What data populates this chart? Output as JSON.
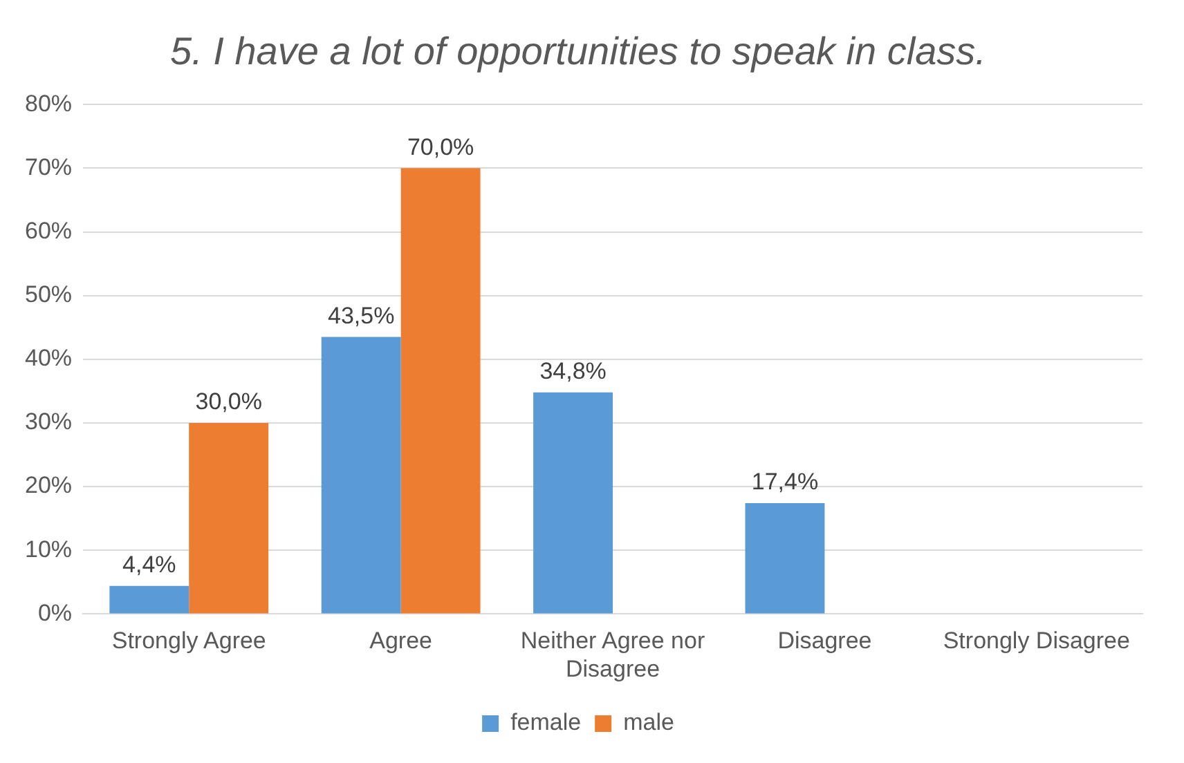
{
  "chart_data": {
    "type": "bar",
    "title": "5. I have a lot of opportunities to speak in class.",
    "categories": [
      "Strongly Agree",
      "Agree",
      "Neither Agree nor Disagree",
      "Disagree",
      "Strongly Disagree"
    ],
    "series": [
      {
        "name": "female",
        "color": "#5b9bd5",
        "values": [
          4.4,
          43.5,
          34.8,
          17.4,
          null
        ],
        "value_labels": [
          "4,4%",
          "43,5%",
          "34,8%",
          "17,4%",
          null
        ]
      },
      {
        "name": "male",
        "color": "#ed7d31",
        "values": [
          30.0,
          70.0,
          null,
          null,
          null
        ],
        "value_labels": [
          "30,0%",
          "70,0%",
          null,
          null,
          null
        ]
      }
    ],
    "ylim": [
      0,
      80
    ],
    "yticks": [
      {
        "value": 0,
        "label": "0%"
      },
      {
        "value": 10,
        "label": "10%"
      },
      {
        "value": 20,
        "label": "20%"
      },
      {
        "value": 30,
        "label": "30%"
      },
      {
        "value": 40,
        "label": "40%"
      },
      {
        "value": 50,
        "label": "50%"
      },
      {
        "value": 60,
        "label": "60%"
      },
      {
        "value": 70,
        "label": "70%"
      },
      {
        "value": 80,
        "label": "80%"
      }
    ],
    "grid": "y",
    "legend": "bottom"
  }
}
